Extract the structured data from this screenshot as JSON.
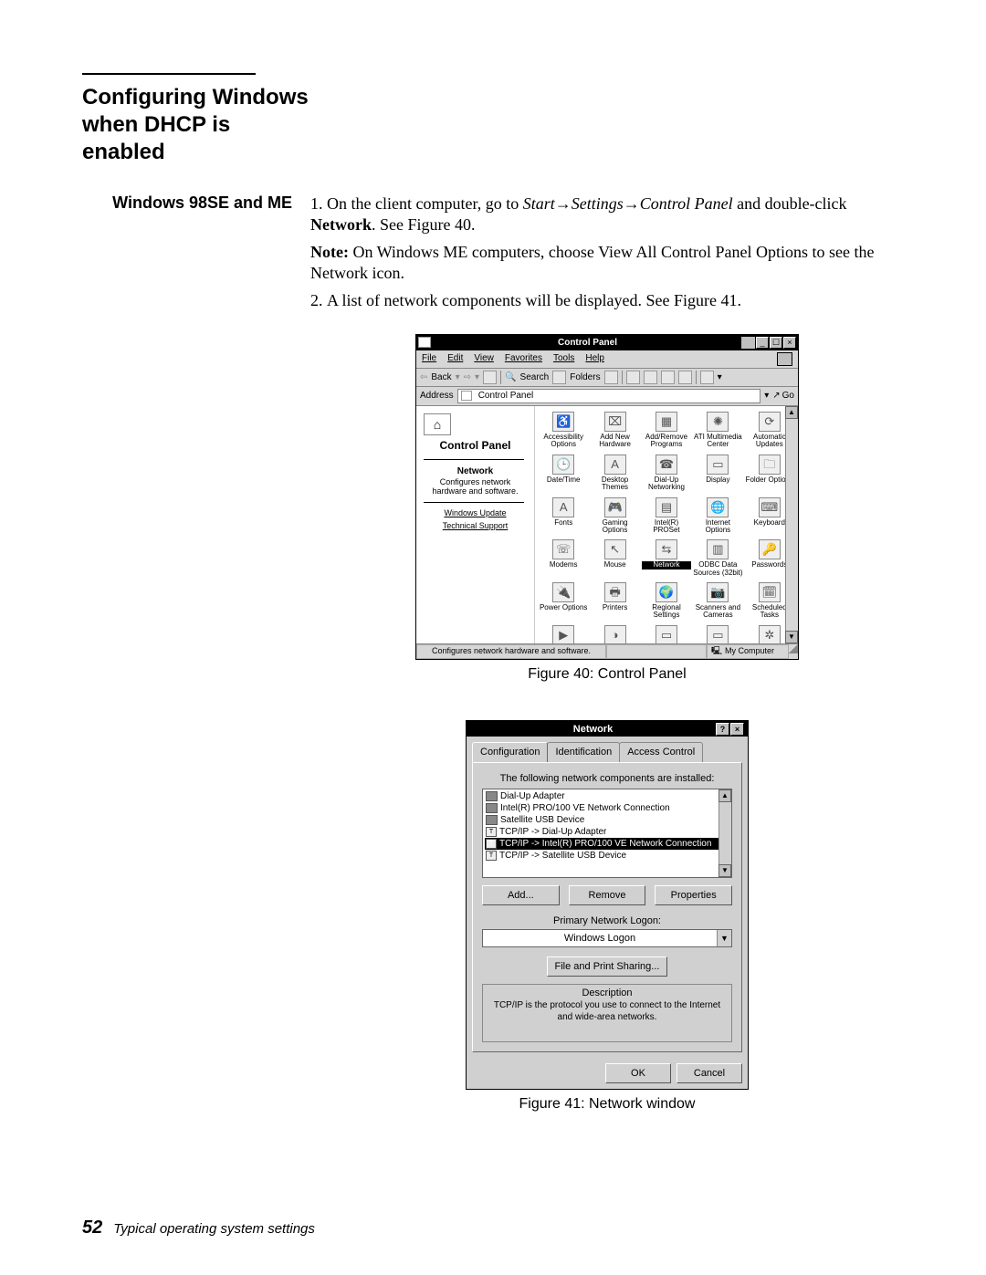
{
  "doc": {
    "section_heading": "Configuring Windows when DHCP is enabled",
    "side_heading": "Windows 98SE and ME",
    "step1_pre": "On the client computer, go to ",
    "step1_path": "Start→Settings→Control Panel",
    "step1_mid": " and double-click ",
    "step1_bold": "Network",
    "step1_post": ". See Figure 40.",
    "note_label": "Note:",
    "note_body": "   On Windows ME computers, choose View All Control Panel Options to see the Network icon.",
    "step2": "A list of network components will be displayed. See Figure 41.",
    "fig40_caption": "Figure 40:  Control Panel",
    "fig41_caption": "Figure 41:  Network window",
    "page_number": "52",
    "footer_text": "Typical operating system settings"
  },
  "cp": {
    "title": "Control Panel",
    "menus": [
      "File",
      "Edit",
      "View",
      "Favorites",
      "Tools",
      "Help"
    ],
    "toolbar_back": "Back",
    "toolbar_search": "Search",
    "toolbar_folders": "Folders",
    "addr_label": "Address",
    "addr_value": "Control Panel",
    "go_label": "Go",
    "side_title": "Control Panel",
    "side_bold": "Network",
    "side_desc": "Configures network hardware and software.",
    "side_link1": "Windows Update",
    "side_link2": "Technical Support",
    "items": [
      {
        "label": "Accessibility Options",
        "glyph": "♿"
      },
      {
        "label": "Add New Hardware",
        "glyph": "⌧"
      },
      {
        "label": "Add/Remove Programs",
        "glyph": "▦"
      },
      {
        "label": "ATI Multimedia Center",
        "glyph": "✺"
      },
      {
        "label": "Automatic Updates",
        "glyph": "⟳"
      },
      {
        "label": "Date/Time",
        "glyph": "🕒"
      },
      {
        "label": "Desktop Themes",
        "glyph": "A"
      },
      {
        "label": "Dial-Up Networking",
        "glyph": "☎"
      },
      {
        "label": "Display",
        "glyph": "▭"
      },
      {
        "label": "Folder Options",
        "glyph": "🗀"
      },
      {
        "label": "Fonts",
        "glyph": "A"
      },
      {
        "label": "Gaming Options",
        "glyph": "🎮"
      },
      {
        "label": "Intel(R) PROSet",
        "glyph": "▤"
      },
      {
        "label": "Internet Options",
        "glyph": "🌐"
      },
      {
        "label": "Keyboard",
        "glyph": "⌨"
      },
      {
        "label": "Modems",
        "glyph": "☏"
      },
      {
        "label": "Mouse",
        "glyph": "↖"
      },
      {
        "label": "Network",
        "glyph": "⇆",
        "selected": true
      },
      {
        "label": "ODBC Data Sources (32bit)",
        "glyph": "▥"
      },
      {
        "label": "Passwords",
        "glyph": "🔑"
      },
      {
        "label": "Power Options",
        "glyph": "🔌"
      },
      {
        "label": "Printers",
        "glyph": "🖶"
      },
      {
        "label": "Regional Settings",
        "glyph": "🌍"
      },
      {
        "label": "Scanners and Cameras",
        "glyph": "📷"
      },
      {
        "label": "Scheduled Tasks",
        "glyph": "🗓"
      },
      {
        "label": "",
        "glyph": "▶"
      },
      {
        "label": "",
        "glyph": "◑"
      },
      {
        "label": "",
        "glyph": "▭"
      },
      {
        "label": "",
        "glyph": "▭"
      },
      {
        "label": "",
        "glyph": "✲"
      }
    ],
    "status_left": "Configures network hardware and software.",
    "status_right": "My Computer"
  },
  "net": {
    "title": "Network",
    "tabs": [
      "Configuration",
      "Identification",
      "Access Control"
    ],
    "label_components": "The following network components are installed:",
    "components": [
      {
        "type": "nic",
        "label": "Dial-Up Adapter"
      },
      {
        "type": "nic",
        "label": "Intel(R) PRO/100 VE Network Connection"
      },
      {
        "type": "nic",
        "label": "Satellite USB Device"
      },
      {
        "type": "proto",
        "label": "TCP/IP -> Dial-Up Adapter"
      },
      {
        "type": "proto",
        "label": "TCP/IP -> Intel(R) PRO/100 VE Network Connection",
        "selected": true
      },
      {
        "type": "proto",
        "label": "TCP/IP -> Satellite USB Device"
      }
    ],
    "btn_add": "Add...",
    "btn_remove": "Remove",
    "btn_props": "Properties",
    "label_logon": "Primary Network Logon:",
    "combo_value": "Windows Logon",
    "btn_fps": "File and Print Sharing...",
    "fieldset_legend": "Description",
    "fieldset_text": "TCP/IP is the protocol you use to connect to the Internet and wide-area networks.",
    "btn_ok": "OK",
    "btn_cancel": "Cancel"
  }
}
